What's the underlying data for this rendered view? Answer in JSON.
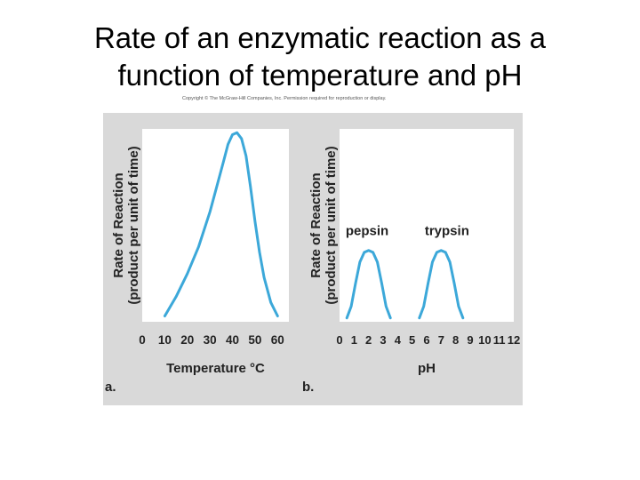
{
  "title": {
    "line1": "Rate of an enzymatic reaction as a",
    "line2": "function of temperature and pH"
  },
  "copyright": "Copyright © The McGraw-Hill Companies, Inc. Permission required for reproduction or display.",
  "colors": {
    "panel_bg": "#d9d9d9",
    "plot_bg": "#ffffff",
    "curve": "#3ca8d9",
    "text": "#222222"
  },
  "chart_data": [
    {
      "type": "line",
      "panel_label": "a.",
      "xlabel": "Temperature °C",
      "ylabel_line1": "Rate of Reaction",
      "ylabel_line2": "(product per unit of time)",
      "xlim": [
        0,
        65
      ],
      "ylim": [
        0,
        1
      ],
      "ticks": [
        "0",
        "10",
        "20",
        "30",
        "40",
        "50",
        "60"
      ],
      "tick_values": [
        0,
        10,
        20,
        30,
        40,
        50,
        60
      ],
      "series": [
        {
          "x": [
            10,
            15,
            20,
            25,
            30,
            33,
            36,
            38,
            40,
            42,
            44,
            46,
            48,
            50,
            52,
            54,
            57,
            60
          ],
          "y": [
            0.03,
            0.13,
            0.25,
            0.39,
            0.57,
            0.7,
            0.83,
            0.92,
            0.97,
            0.98,
            0.95,
            0.86,
            0.7,
            0.52,
            0.36,
            0.23,
            0.1,
            0.03
          ]
        }
      ]
    },
    {
      "type": "line",
      "panel_label": "b.",
      "xlabel": "pH",
      "ylabel_line1": "Rate of Reaction",
      "ylabel_line2": "(product per unit of time)",
      "xlim": [
        0,
        12
      ],
      "ylim": [
        0,
        1
      ],
      "ticks": [
        "0",
        "1",
        "2",
        "3",
        "4",
        "5",
        "6",
        "7",
        "8",
        "9",
        "10",
        "11",
        "12"
      ],
      "tick_values": [
        0,
        1,
        2,
        3,
        4,
        5,
        6,
        7,
        8,
        9,
        10,
        11,
        12
      ],
      "annotations": [
        {
          "text": "pepsin",
          "x": 1.9,
          "y": 0.45
        },
        {
          "text": "trypsin",
          "x": 7.4,
          "y": 0.45
        }
      ],
      "series": [
        {
          "name": "pepsin",
          "x": [
            0.5,
            0.8,
            1.1,
            1.4,
            1.7,
            2.0,
            2.3,
            2.6,
            2.9,
            3.2,
            3.5
          ],
          "y": [
            0.02,
            0.08,
            0.2,
            0.31,
            0.36,
            0.37,
            0.36,
            0.31,
            0.2,
            0.08,
            0.02
          ]
        },
        {
          "name": "trypsin",
          "x": [
            5.5,
            5.8,
            6.1,
            6.4,
            6.7,
            7.0,
            7.3,
            7.6,
            7.9,
            8.2,
            8.5
          ],
          "y": [
            0.02,
            0.08,
            0.2,
            0.31,
            0.36,
            0.37,
            0.36,
            0.31,
            0.2,
            0.08,
            0.02
          ]
        }
      ]
    }
  ]
}
